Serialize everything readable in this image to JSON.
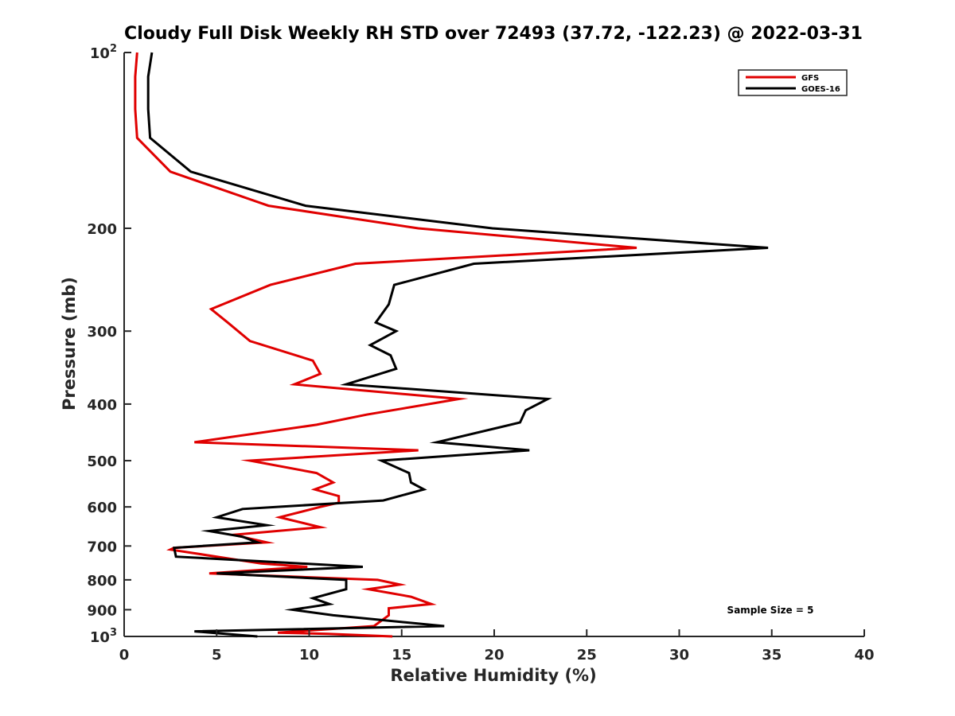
{
  "chart_data": {
    "type": "line",
    "title": "Cloudy Full Disk Weekly RH STD over 72493 (37.72, -122.23) @ 2022-03-31",
    "xlabel": "Relative Humidity (%)",
    "ylabel": "Pressure (mb)",
    "xlim": [
      0,
      40
    ],
    "ylim": [
      100,
      1000
    ],
    "y_scale": "log",
    "y_direction": "reversed",
    "grid": false,
    "legend_position": "top-right",
    "x_ticks": [
      "0",
      "5",
      "10",
      "15",
      "20",
      "25",
      "30",
      "35",
      "40"
    ],
    "y_ticks": [
      {
        "value": 100,
        "base": "10",
        "exp": "2"
      },
      {
        "value": 200,
        "label": "200"
      },
      {
        "value": 300,
        "label": "300"
      },
      {
        "value": 400,
        "label": "400"
      },
      {
        "value": 500,
        "label": "500"
      },
      {
        "value": 600,
        "label": "600"
      },
      {
        "value": 700,
        "label": "700"
      },
      {
        "value": 800,
        "label": "800"
      },
      {
        "value": 900,
        "label": "900"
      },
      {
        "value": 1000,
        "base": "10",
        "exp": "3"
      }
    ],
    "annotation": "Sample Size = 5",
    "series": [
      {
        "name": "GFS",
        "color": "#e00000",
        "points": [
          [
            0.7,
            100
          ],
          [
            0.6,
            110
          ],
          [
            0.6,
            125
          ],
          [
            0.7,
            140
          ],
          [
            2.5,
            160
          ],
          [
            7.8,
            183
          ],
          [
            15.9,
            200
          ],
          [
            27.7,
            216
          ],
          [
            12.5,
            230
          ],
          [
            7.9,
            250
          ],
          [
            4.7,
            275
          ],
          [
            5.6,
            290
          ],
          [
            6.8,
            312
          ],
          [
            10.2,
            337
          ],
          [
            10.6,
            355
          ],
          [
            9.2,
            370
          ],
          [
            18.1,
            392
          ],
          [
            13.1,
            417
          ],
          [
            10.4,
            434
          ],
          [
            3.8,
            465
          ],
          [
            15.9,
            480
          ],
          [
            6.8,
            500
          ],
          [
            10.4,
            525
          ],
          [
            11.3,
            545
          ],
          [
            10.3,
            560
          ],
          [
            11.6,
            575
          ],
          [
            11.6,
            590
          ],
          [
            10.6,
            600
          ],
          [
            8.4,
            625
          ],
          [
            10.6,
            650
          ],
          [
            5.9,
            670
          ],
          [
            7.7,
            690
          ],
          [
            2.7,
            705
          ],
          [
            2.5,
            710
          ],
          [
            7.4,
            750
          ],
          [
            9.9,
            760
          ],
          [
            4.6,
            780
          ],
          [
            13.7,
            800
          ],
          [
            14.9,
            815
          ],
          [
            13.2,
            830
          ],
          [
            15.5,
            855
          ],
          [
            16.6,
            880
          ],
          [
            14.3,
            895
          ],
          [
            14.3,
            920
          ],
          [
            13.5,
            960
          ],
          [
            8.3,
            985
          ],
          [
            11.0,
            990
          ],
          [
            14.5,
            1000
          ]
        ]
      },
      {
        "name": "GOES-16",
        "color": "#000000",
        "points": [
          [
            1.5,
            100
          ],
          [
            1.3,
            110
          ],
          [
            1.3,
            125
          ],
          [
            1.4,
            140
          ],
          [
            3.6,
            160
          ],
          [
            9.8,
            183
          ],
          [
            19.9,
            200
          ],
          [
            34.8,
            216
          ],
          [
            18.9,
            230
          ],
          [
            14.6,
            250
          ],
          [
            14.3,
            270
          ],
          [
            13.6,
            290
          ],
          [
            14.7,
            300
          ],
          [
            13.3,
            317
          ],
          [
            14.4,
            330
          ],
          [
            14.7,
            348
          ],
          [
            12.0,
            370
          ],
          [
            22.9,
            392
          ],
          [
            21.7,
            410
          ],
          [
            21.4,
            430
          ],
          [
            16.9,
            465
          ],
          [
            21.9,
            480
          ],
          [
            13.9,
            500
          ],
          [
            15.4,
            525
          ],
          [
            15.5,
            545
          ],
          [
            16.2,
            560
          ],
          [
            14.0,
            585
          ],
          [
            6.4,
            605
          ],
          [
            5.0,
            625
          ],
          [
            7.7,
            645
          ],
          [
            4.6,
            660
          ],
          [
            6.4,
            675
          ],
          [
            7.2,
            690
          ],
          [
            2.7,
            705
          ],
          [
            2.8,
            730
          ],
          [
            12.9,
            760
          ],
          [
            5.0,
            780
          ],
          [
            12.0,
            800
          ],
          [
            12.0,
            830
          ],
          [
            10.2,
            860
          ],
          [
            11.1,
            880
          ],
          [
            9.1,
            900
          ],
          [
            11.3,
            920
          ],
          [
            17.3,
            960
          ],
          [
            3.8,
            980
          ],
          [
            7.2,
            1000
          ]
        ]
      }
    ]
  }
}
